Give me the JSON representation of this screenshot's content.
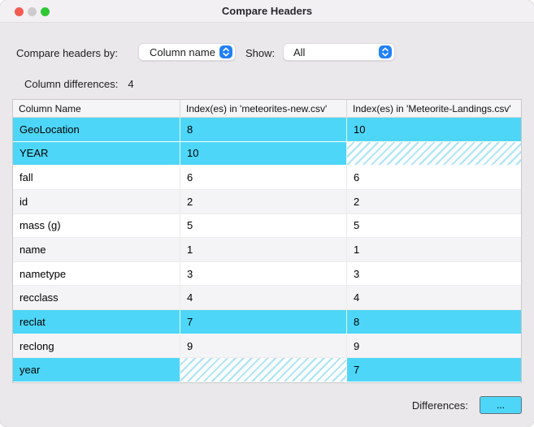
{
  "window": {
    "title": "Compare Headers"
  },
  "titlebar_buttons": {
    "close": "close-button",
    "minimize": "minimize-button",
    "zoom": "zoom-button"
  },
  "controls": {
    "compare_by_label": "Compare headers by:",
    "compare_by_value": "Column name",
    "show_label": "Show:",
    "show_value": "All"
  },
  "summary": {
    "label": "Column differences:",
    "count": "4"
  },
  "table": {
    "columns": [
      "Column Name",
      "Index(es) in 'meteorites-new.csv'",
      "Index(es) in 'Meteorite-Landings.csv'"
    ],
    "rows": [
      {
        "cells": [
          "GeoLocation",
          "8",
          "10"
        ],
        "highlight": true,
        "hatch": []
      },
      {
        "cells": [
          "YEAR",
          "10",
          ""
        ],
        "highlight": true,
        "hatch": [
          2
        ]
      },
      {
        "cells": [
          "fall",
          "6",
          "6"
        ],
        "highlight": false,
        "hatch": []
      },
      {
        "cells": [
          "id",
          "2",
          "2"
        ],
        "highlight": false,
        "hatch": []
      },
      {
        "cells": [
          "mass (g)",
          "5",
          "5"
        ],
        "highlight": false,
        "hatch": []
      },
      {
        "cells": [
          "name",
          "1",
          "1"
        ],
        "highlight": false,
        "hatch": []
      },
      {
        "cells": [
          "nametype",
          "3",
          "3"
        ],
        "highlight": false,
        "hatch": []
      },
      {
        "cells": [
          "recclass",
          "4",
          "4"
        ],
        "highlight": false,
        "hatch": []
      },
      {
        "cells": [
          "reclat",
          "7",
          "8"
        ],
        "highlight": true,
        "hatch": []
      },
      {
        "cells": [
          "reclong",
          "9",
          "9"
        ],
        "highlight": false,
        "hatch": []
      },
      {
        "cells": [
          "year",
          "",
          "7"
        ],
        "highlight": true,
        "hatch": [
          1
        ]
      }
    ]
  },
  "footer": {
    "differences_label": "Differences:",
    "button_label": "..."
  },
  "colors": {
    "highlight": "#4dd6f7",
    "hatch_stripe": "#abe3f7",
    "accent_blue": "#2180f8",
    "window_bg": "#ebe8ec",
    "traffic_close": "#f35b51",
    "traffic_minimize": "#cecbce",
    "traffic_zoom": "#30c735"
  }
}
